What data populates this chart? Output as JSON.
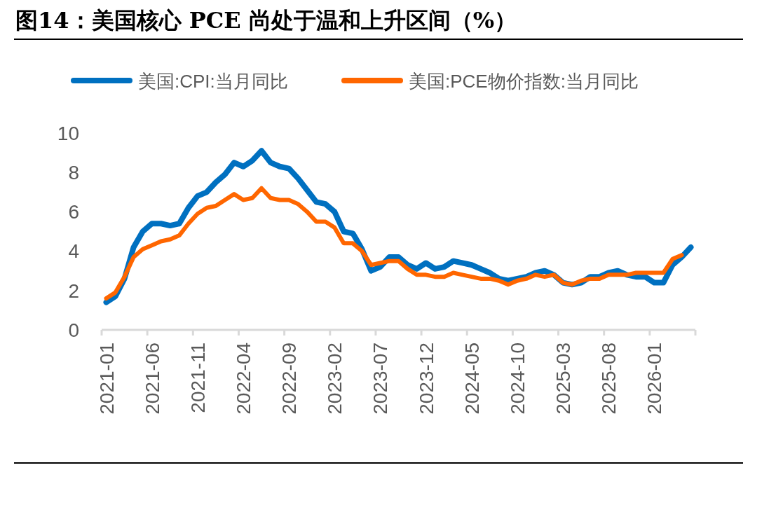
{
  "chart_data": {
    "type": "line",
    "title": "图14：美国核心 PCE 尚处于温和上升区间（%）",
    "categories": [
      "2021-01",
      null,
      null,
      null,
      null,
      "2021-06",
      null,
      null,
      null,
      null,
      "2021-11",
      null,
      null,
      null,
      null,
      "2022-04",
      null,
      null,
      null,
      null,
      "2022-09",
      null,
      null,
      null,
      null,
      "2023-02",
      null,
      null,
      null,
      null,
      "2023-07",
      null,
      null,
      null,
      null,
      "2023-12",
      null,
      null,
      null,
      null,
      "2024-05",
      null,
      null,
      null,
      null,
      "2024-10",
      null,
      null,
      null,
      null,
      "2025-03",
      null,
      null,
      null,
      null,
      "2025-08",
      null,
      null,
      null,
      null,
      "2026-01",
      null,
      null,
      null,
      null
    ],
    "series": [
      {
        "name": "美国:CPI:当月同比",
        "color": "#0070c0",
        "values": [
          1.4,
          1.7,
          2.6,
          4.2,
          5.0,
          5.4,
          5.4,
          5.3,
          5.4,
          6.2,
          6.8,
          7.0,
          7.5,
          7.9,
          8.5,
          8.3,
          8.6,
          9.1,
          8.5,
          8.3,
          8.2,
          7.7,
          7.1,
          6.5,
          6.4,
          6.0,
          5.0,
          4.9,
          4.1,
          3.0,
          3.2,
          3.7,
          3.7,
          3.3,
          3.1,
          3.4,
          3.1,
          3.2,
          3.5,
          3.4,
          3.3,
          3.1,
          2.9,
          2.6,
          2.5,
          2.6,
          2.7,
          2.9,
          3.0,
          2.8,
          2.4,
          2.3,
          2.4,
          2.7,
          2.7,
          2.9,
          3.0,
          2.8,
          2.7,
          2.7,
          2.4,
          2.4,
          3.3,
          3.7,
          4.2
        ]
      },
      {
        "name": "美国:PCE物价指数:当月同比",
        "color": "#ff6600",
        "values": [
          1.6,
          1.9,
          2.7,
          3.7,
          4.1,
          4.3,
          4.5,
          4.6,
          4.8,
          5.4,
          5.9,
          6.2,
          6.3,
          6.6,
          6.9,
          6.6,
          6.7,
          7.2,
          6.7,
          6.6,
          6.6,
          6.4,
          6.0,
          5.5,
          5.5,
          5.2,
          4.4,
          4.4,
          4.0,
          3.3,
          3.4,
          3.5,
          3.5,
          3.1,
          2.8,
          2.8,
          2.7,
          2.7,
          2.9,
          2.8,
          2.7,
          2.6,
          2.6,
          2.5,
          2.3,
          2.5,
          2.6,
          2.8,
          2.7,
          2.8,
          2.4,
          2.3,
          2.5,
          2.6,
          2.6,
          2.8,
          2.8,
          2.8,
          2.9,
          2.9,
          2.9,
          2.9,
          3.6,
          3.8,
          null
        ]
      }
    ],
    "ylim": [
      0,
      10
    ],
    "yticks": [
      0,
      2,
      4,
      6,
      8,
      10
    ],
    "grid": false,
    "legend": "top",
    "line_style": "solid",
    "marker": "none"
  }
}
